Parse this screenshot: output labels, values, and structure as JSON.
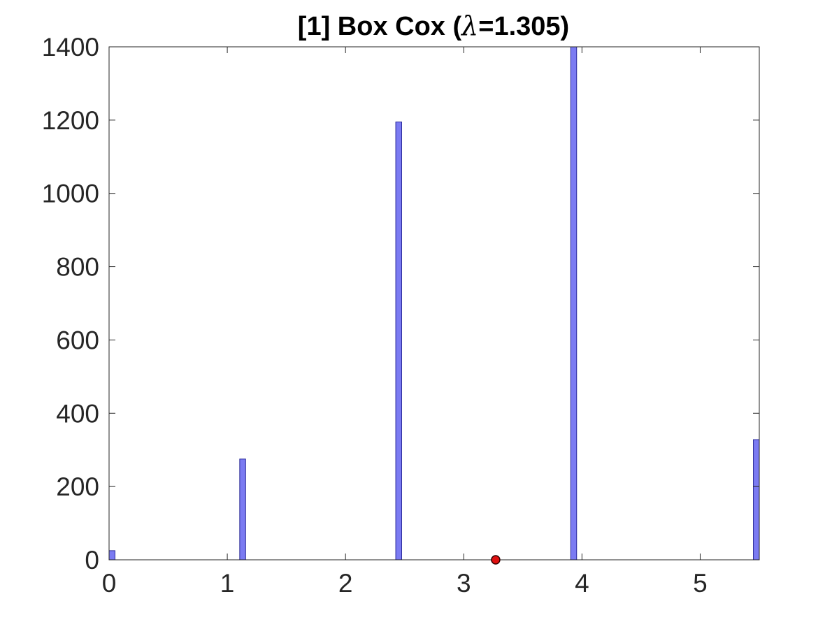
{
  "chart_data": {
    "type": "bar",
    "title_prefix": "[1] Box Cox (",
    "title_symbol": "λ",
    "title_suffix": "=1.305)",
    "xlabel": "",
    "ylabel": "",
    "xlim": [
      0,
      5.5
    ],
    "ylim": [
      0,
      1400
    ],
    "x_ticks": [
      "0",
      "1",
      "2",
      "3",
      "4",
      "5"
    ],
    "y_ticks": [
      "0",
      "200",
      "400",
      "600",
      "800",
      "1000",
      "1200",
      "1400"
    ],
    "bar_width": 0.05,
    "bars": [
      {
        "x": 0.025,
        "value": 25
      },
      {
        "x": 1.13,
        "value": 275
      },
      {
        "x": 2.45,
        "value": 1195
      },
      {
        "x": 3.93,
        "value": 1400
      },
      {
        "x": 5.475,
        "value": 328
      }
    ],
    "marker": {
      "x": 3.27,
      "y": 0
    },
    "grid": false,
    "colors": {
      "bar_fill": "#7b7bf2",
      "bar_edge": "#2a2a99",
      "marker_fill": "#e01010",
      "marker_edge": "#300000",
      "axis": "#262626"
    }
  }
}
